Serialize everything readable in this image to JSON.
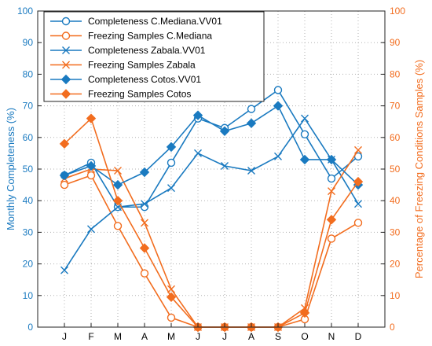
{
  "colors": {
    "blue": "#1a7ac0",
    "orange": "#f26d1f",
    "grid": "#b0b0b0",
    "axis": "#222222"
  },
  "chart_data": {
    "type": "line",
    "categories": [
      "J",
      "F",
      "M",
      "A",
      "M",
      "J",
      "J",
      "A",
      "S",
      "O",
      "N",
      "D"
    ],
    "ylabel_left": "Monthly Completeness (%)",
    "ylabel_right": "Percentage of Freezing Conditions Samples (%)",
    "ylim_left": [
      0,
      100
    ],
    "ylim_right": [
      0,
      100
    ],
    "yticks_left": [
      "0",
      "10",
      "20",
      "30",
      "40",
      "50",
      "60",
      "70",
      "80",
      "90",
      "100"
    ],
    "yticks_right": [
      "0",
      "10",
      "20",
      "30",
      "40",
      "50",
      "60",
      "70",
      "80",
      "90",
      "100"
    ],
    "grid": true,
    "legend_position": "top-left",
    "series": [
      {
        "name": "Completeness C.Mediana.VV01",
        "axis": "left",
        "color": "blue",
        "marker": "circle",
        "values": [
          48,
          52,
          38,
          38,
          52,
          66,
          63,
          69,
          75,
          61,
          47,
          54
        ]
      },
      {
        "name": "Freezing Samples C.Mediana",
        "axis": "right",
        "color": "orange",
        "marker": "circle",
        "values": [
          45,
          48,
          32,
          17,
          3,
          0,
          0,
          0,
          0,
          2.5,
          28,
          33
        ]
      },
      {
        "name": "Completeness Zabala.VV01",
        "axis": "left",
        "color": "blue",
        "marker": "x",
        "values": [
          18,
          31,
          38,
          39,
          44,
          55,
          51,
          49.5,
          54,
          66,
          53,
          39
        ]
      },
      {
        "name": "Freezing Samples Zabala",
        "axis": "right",
        "color": "orange",
        "marker": "x",
        "values": [
          47,
          50,
          49.5,
          33,
          12,
          0,
          0,
          0,
          0,
          6,
          43,
          56
        ]
      },
      {
        "name": "Completeness Cotos.VV01",
        "axis": "left",
        "color": "blue",
        "marker": "diamond",
        "values": [
          48,
          51,
          45,
          49,
          57,
          67,
          62,
          64.5,
          70,
          53,
          53,
          45
        ]
      },
      {
        "name": "Freezing Samples Cotos",
        "axis": "right",
        "color": "orange",
        "marker": "diamond",
        "values": [
          58,
          66,
          40,
          25,
          9.5,
          0,
          0,
          0,
          0,
          4.5,
          34,
          46
        ]
      }
    ]
  }
}
